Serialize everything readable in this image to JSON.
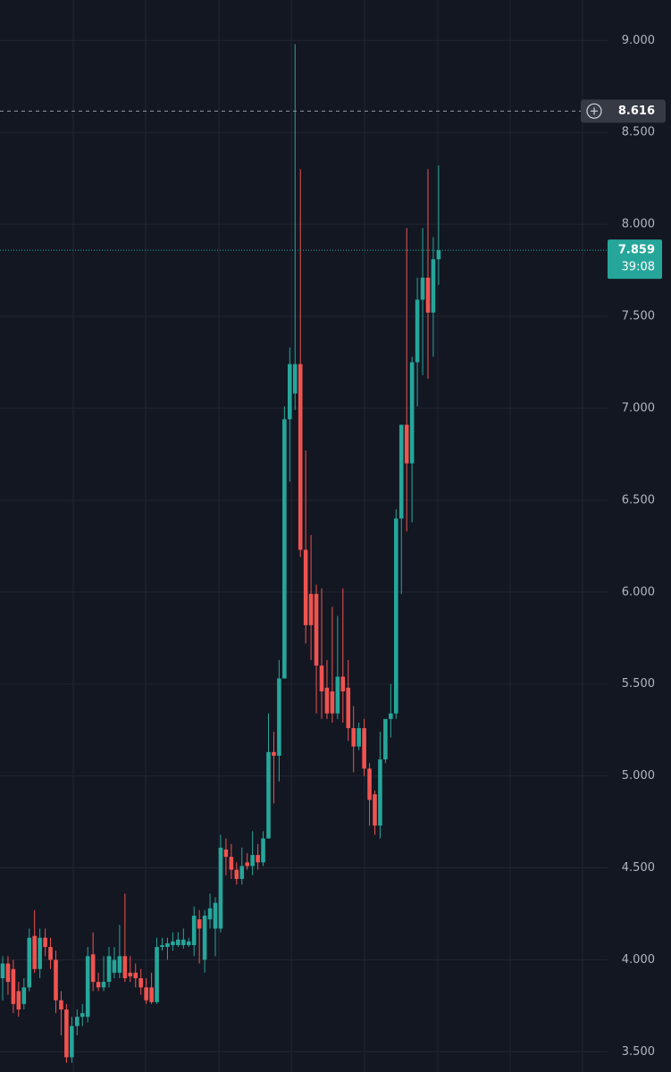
{
  "chart_data": {
    "type": "candlestick",
    "ylim": [
      3.39,
      9.22
    ],
    "yticks": [
      {
        "value": 3.5,
        "label": "3.500"
      },
      {
        "value": 4,
        "label": "4.000"
      },
      {
        "value": 4.5,
        "label": "4.500"
      },
      {
        "value": 5,
        "label": "5.000"
      },
      {
        "value": 5.5,
        "label": "5.500"
      },
      {
        "value": 6,
        "label": "6.000"
      },
      {
        "value": 6.5,
        "label": "6.500"
      },
      {
        "value": 7,
        "label": "7.000"
      },
      {
        "value": 7.5,
        "label": "7.500"
      },
      {
        "value": 8,
        "label": "8.000"
      },
      {
        "value": 8.5,
        "label": "8.500"
      },
      {
        "value": 9,
        "label": "9.000"
      }
    ],
    "grid": true,
    "up_color": "#26a69a",
    "down_color": "#ef5350",
    "open": [
      3.9,
      3.98,
      3.95,
      3.83,
      3.76,
      3.85,
      4.13,
      3.95,
      4.12,
      4.07,
      4.0,
      3.78,
      3.73,
      3.47,
      3.64,
      3.69,
      3.69,
      4.03,
      3.88,
      3.85,
      3.88,
      3.93,
      3.93,
      4.02,
      3.93,
      3.93,
      3.9,
      3.85,
      3.85,
      3.77,
      4.07,
      4.07,
      4.08,
      4.08,
      4.08,
      4.08,
      4.08,
      4.22,
      4.0,
      4.22,
      4.17,
      4.17,
      4.6,
      4.56,
      4.49,
      4.44,
      4.53,
      4.51,
      4.57,
      4.53,
      4.66,
      5.13,
      5.11,
      5.53,
      6.94,
      7.08,
      7.24,
      6.23,
      5.99,
      5.99,
      5.6,
      5.48,
      5.46,
      5.34,
      5.54,
      5.48,
      5.26,
      5.16,
      5.26,
      5.04,
      4.9,
      4.73,
      5.09,
      5.31,
      5.34,
      6.4,
      6.91,
      6.7,
      7.25,
      7.59,
      7.71,
      7.52,
      7.81
    ],
    "high": [
      4.02,
      4.02,
      4.0,
      3.88,
      3.9,
      4.17,
      4.27,
      4.17,
      4.17,
      4.12,
      4.05,
      3.83,
      3.76,
      3.69,
      3.73,
      3.76,
      4.07,
      4.15,
      3.93,
      4.02,
      4.07,
      4.07,
      4.19,
      4.36,
      4.02,
      3.98,
      3.95,
      3.9,
      3.93,
      4.12,
      4.12,
      4.12,
      4.15,
      4.15,
      4.17,
      4.12,
      4.29,
      4.27,
      4.27,
      4.36,
      4.34,
      4.68,
      4.66,
      4.63,
      4.53,
      4.61,
      4.58,
      4.7,
      4.63,
      4.7,
      5.34,
      5.24,
      5.63,
      7.01,
      7.33,
      8.98,
      8.3,
      6.77,
      6.31,
      6.04,
      6.02,
      5.63,
      5.92,
      5.87,
      6.02,
      5.63,
      5.38,
      5.29,
      5.31,
      5.07,
      4.92,
      5.24,
      5.29,
      5.5,
      6.45,
      6.91,
      7.98,
      7.28,
      7.71,
      7.98,
      8.3,
      7.93,
      8.32
    ],
    "low": [
      3.78,
      3.81,
      3.71,
      3.69,
      3.73,
      3.83,
      3.93,
      3.9,
      4.02,
      3.95,
      3.71,
      3.59,
      3.44,
      3.44,
      3.59,
      3.64,
      3.66,
      3.83,
      3.83,
      3.83,
      3.85,
      3.9,
      3.9,
      3.88,
      3.88,
      3.85,
      3.81,
      3.76,
      3.76,
      3.76,
      4.05,
      4.0,
      4.05,
      4.07,
      4.06,
      4.07,
      4.02,
      3.98,
      3.93,
      4.17,
      4.02,
      4.15,
      4.46,
      4.44,
      4.41,
      4.41,
      4.49,
      4.46,
      4.49,
      4.51,
      4.66,
      4.85,
      4.97,
      5.53,
      6.6,
      6.99,
      6.19,
      5.72,
      5.63,
      5.34,
      5.31,
      5.31,
      5.29,
      5.31,
      5.29,
      5.19,
      5.02,
      5.14,
      5.0,
      4.73,
      4.68,
      4.66,
      5.07,
      5.21,
      5.31,
      5.99,
      6.33,
      6.38,
      7.01,
      7.18,
      7.16,
      7.28,
      7.67
    ],
    "close": [
      3.98,
      3.88,
      3.76,
      3.73,
      3.85,
      4.12,
      3.95,
      4.12,
      4.07,
      4.0,
      3.78,
      3.73,
      3.47,
      3.64,
      3.69,
      3.71,
      4.02,
      3.88,
      3.85,
      3.88,
      4.02,
      4.0,
      4.02,
      3.9,
      3.91,
      3.9,
      3.85,
      3.78,
      3.77,
      4.07,
      4.08,
      4.09,
      4.1,
      4.11,
      4.11,
      4.1,
      4.24,
      4.17,
      4.24,
      4.28,
      4.31,
      4.61,
      4.56,
      4.49,
      4.44,
      4.51,
      4.51,
      4.57,
      4.53,
      4.66,
      5.13,
      5.11,
      5.53,
      6.94,
      7.24,
      7.24,
      6.23,
      5.82,
      5.82,
      5.6,
      5.46,
      5.34,
      5.34,
      5.54,
      5.46,
      5.26,
      5.16,
      5.26,
      5.04,
      4.87,
      4.73,
      5.09,
      5.31,
      5.34,
      6.4,
      6.91,
      6.7,
      7.25,
      7.59,
      7.71,
      7.52,
      7.81,
      7.859
    ],
    "last_price": 7.859,
    "countdown": "39:08",
    "crosshair_price": 8.616
  }
}
